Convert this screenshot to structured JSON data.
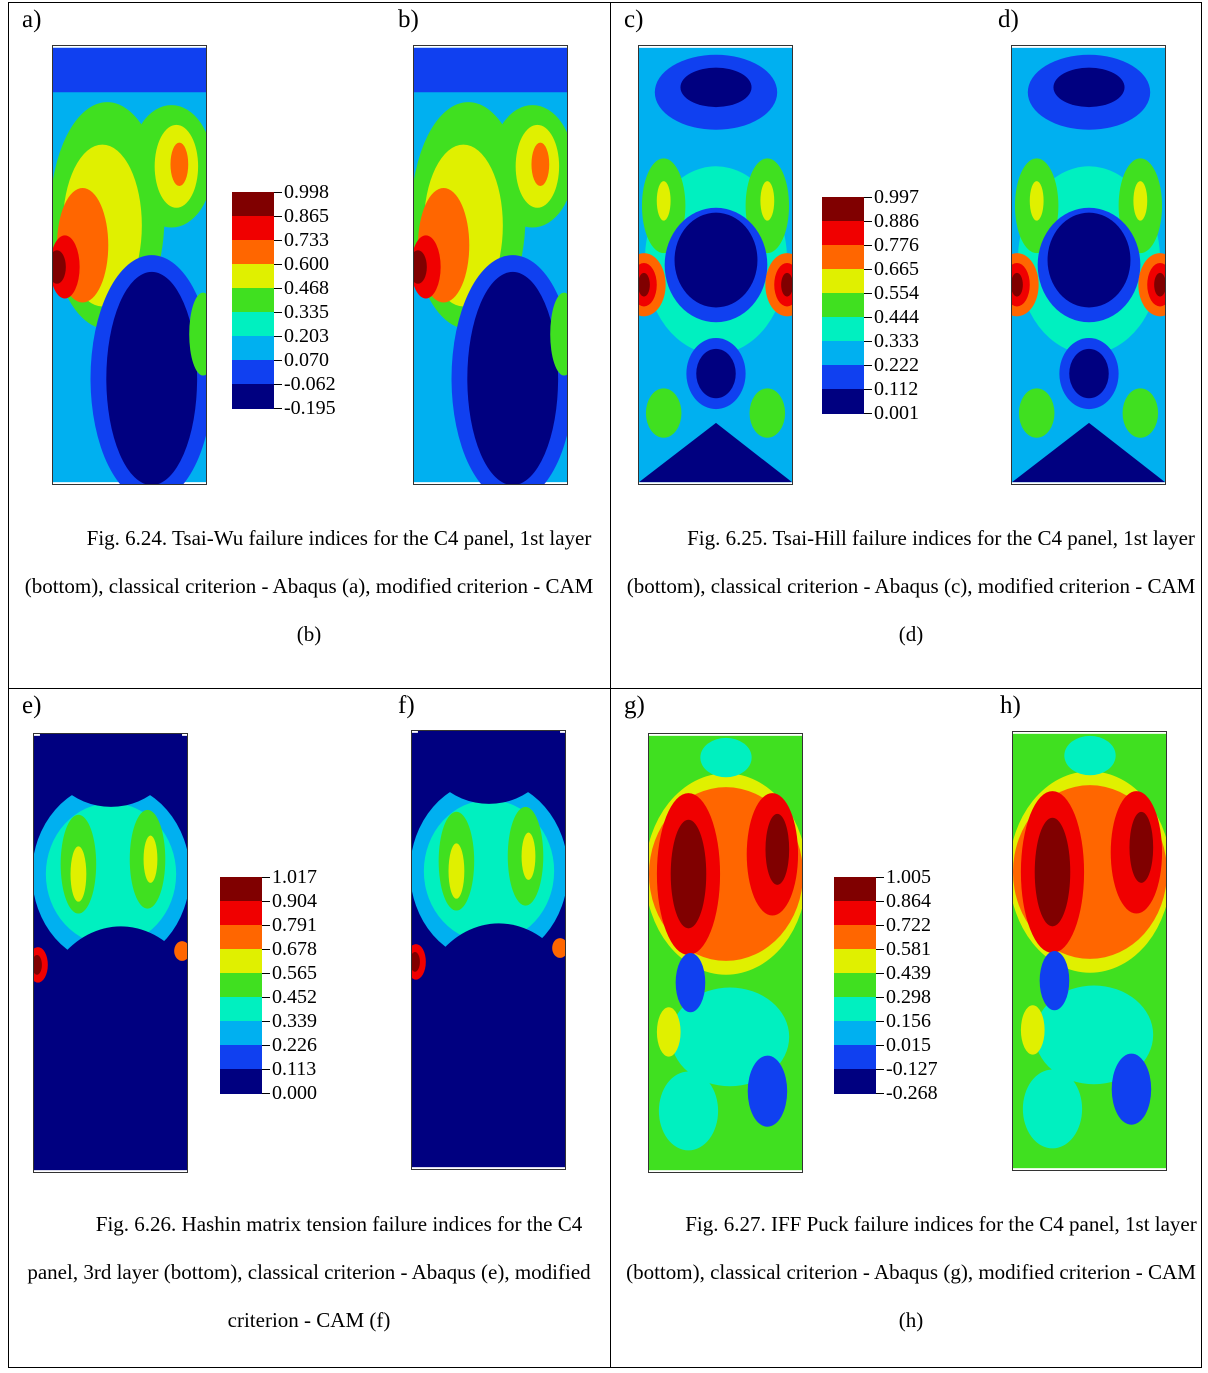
{
  "figures": [
    {
      "panels": [
        "a)",
        "b)"
      ],
      "legend": [
        "0.998",
        "0.865",
        "0.733",
        "0.600",
        "0.468",
        "0.335",
        "0.203",
        "0.070",
        "-0.062",
        "-0.195"
      ],
      "caption": "Fig. 6.24. Tsai-Wu failure indices for the C4 panel, 1st layer (bottom), classical criterion - Abaqus (a), modified criterion - CAM (b)"
    },
    {
      "panels": [
        "c)",
        "d)"
      ],
      "legend": [
        "0.997",
        "0.886",
        "0.776",
        "0.665",
        "0.554",
        "0.444",
        "0.333",
        "0.222",
        "0.112",
        "0.001"
      ],
      "caption": "Fig. 6.25. Tsai-Hill failure indices for the C4 panel, 1st layer (bottom), classical criterion - Abaqus (c), modified criterion - CAM (d)"
    },
    {
      "panels": [
        "e)",
        "f)"
      ],
      "legend": [
        "1.017",
        "0.904",
        "0.791",
        "0.678",
        "0.565",
        "0.452",
        "0.339",
        "0.226",
        "0.113",
        "0.000"
      ],
      "caption": "Fig. 6.26. Hashin matrix tension failure indices for the C4 panel, 3rd layer (bottom), classical criterion - Abaqus (e), modified criterion - CAM (f)"
    },
    {
      "panels": [
        "g)",
        "h)"
      ],
      "legend": [
        "1.005",
        "0.864",
        "0.722",
        "0.581",
        "0.439",
        "0.298",
        "0.156",
        "0.015",
        "-0.127",
        "-0.268"
      ],
      "caption": "Fig. 6.27. IFF Puck failure indices for the C4 panel, 1st layer (bottom), classical criterion - Abaqus (g), modified criterion - CAM (h)"
    }
  ]
}
